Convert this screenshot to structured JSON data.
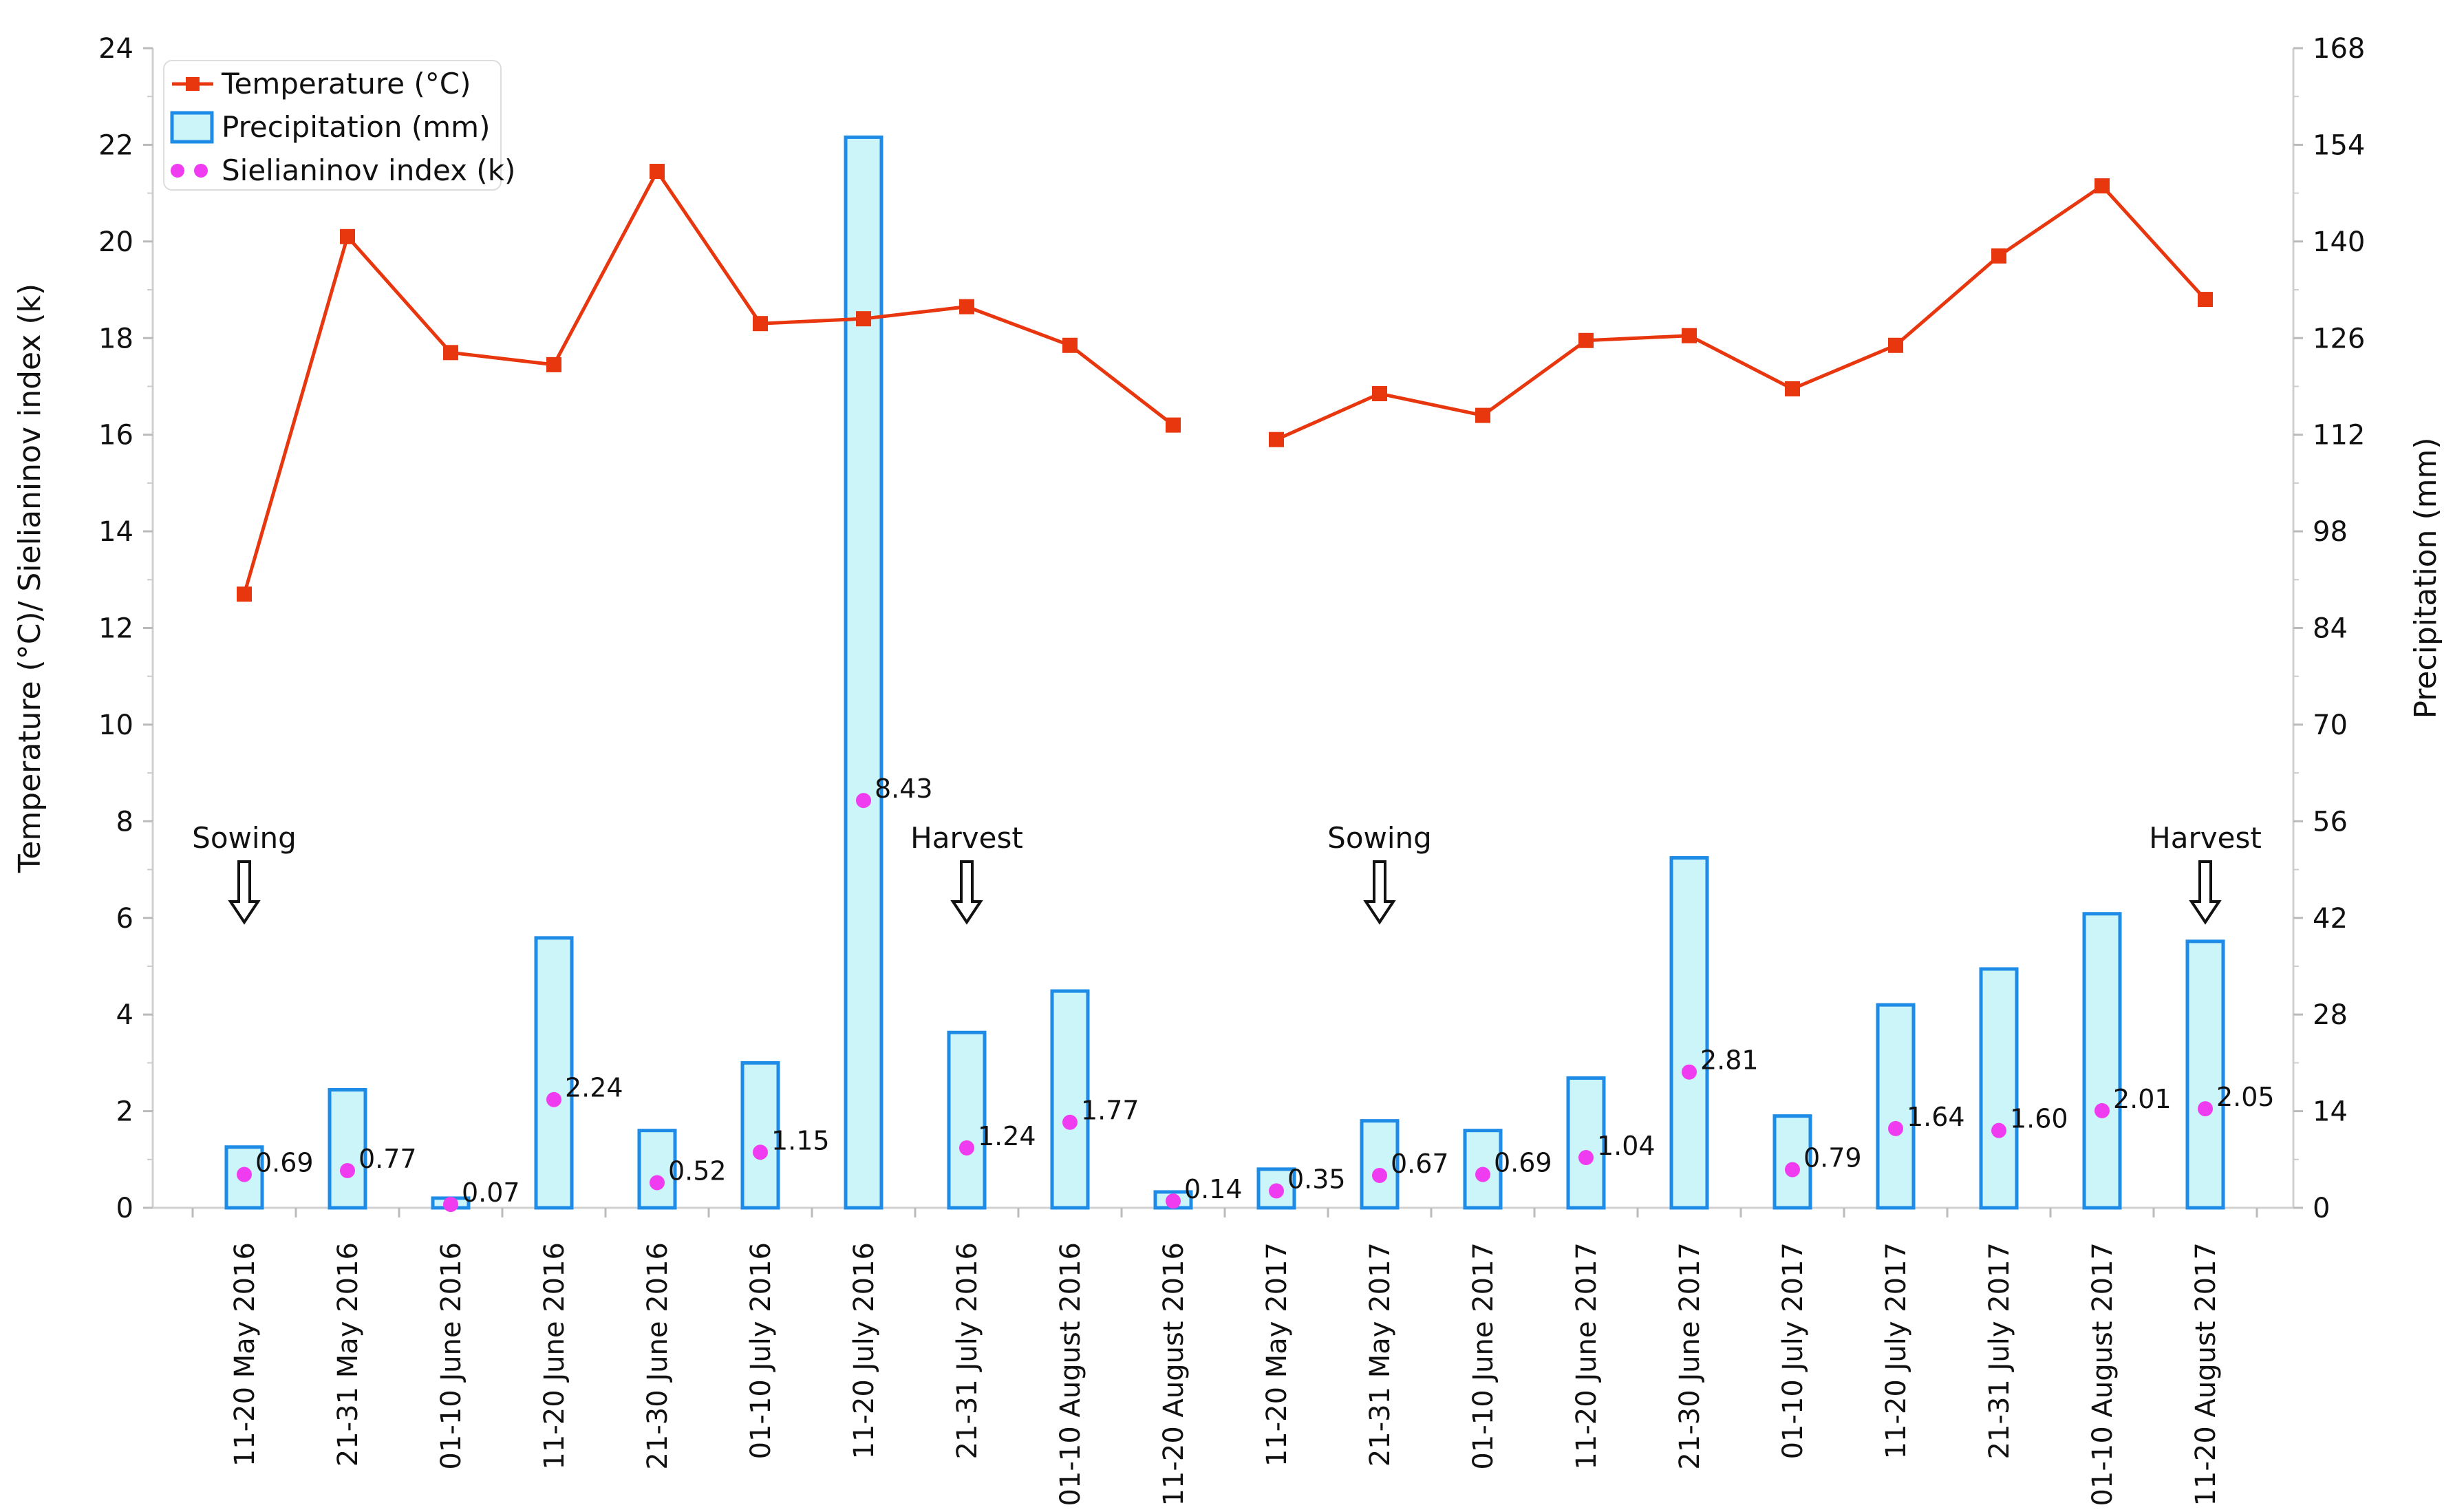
{
  "chart_data": {
    "type": "bar-line",
    "categories": [
      "11-20 May 2016",
      "21-31 May 2016",
      "01-10 June 2016",
      "11-20 June 2016",
      "21-30 June 2016",
      "01-10 July 2016",
      "11-20 July 2016",
      "21-31 July 2016",
      "01-10 August 2016",
      "11-20 August 2016",
      "11-20 May 2017",
      "21-31 May 2017",
      "01-10 June 2017",
      "11-20 June 2017",
      "21-30 June 2017",
      "01-10 July 2017",
      "11-20 July 2017",
      "21-31 July 2017",
      "01-10 August 2017",
      "11-20 August 2017"
    ],
    "series": [
      {
        "name": "Temperature (°C)",
        "kind": "line",
        "axis": "left",
        "color": "#e8360e",
        "segments": [
          [
            0,
            9
          ],
          [
            10,
            19
          ]
        ],
        "values": [
          12.7,
          20.1,
          17.7,
          17.45,
          21.45,
          18.3,
          18.4,
          18.65,
          17.85,
          16.2,
          15.9,
          16.85,
          16.4,
          17.95,
          18.05,
          16.95,
          17.85,
          19.7,
          21.15,
          18.8
        ]
      },
      {
        "name": "Precipitation (mm)",
        "kind": "bar",
        "axis": "right",
        "color": "#1e8ce6",
        "fill": "#ccf5fa",
        "values": [
          8.8,
          17.1,
          1.4,
          39.1,
          11.2,
          21.0,
          155.1,
          25.4,
          31.4,
          2.3,
          5.6,
          12.6,
          11.2,
          18.8,
          50.7,
          13.3,
          29.4,
          34.6,
          42.6,
          38.6
        ]
      },
      {
        "name": "Sielianinov index (k)",
        "kind": "scatter",
        "axis": "left",
        "color": "#f03cf0",
        "values": [
          0.69,
          0.77,
          0.07,
          2.24,
          0.52,
          1.15,
          8.43,
          1.24,
          1.77,
          0.14,
          0.35,
          0.67,
          0.69,
          1.04,
          2.81,
          0.79,
          1.64,
          1.6,
          2.01,
          2.05
        ],
        "labels": [
          "0.69",
          "0.77",
          "0.07",
          "2.24",
          "0.52",
          "1.15",
          "8.43",
          "1.24",
          "1.77",
          "0.14",
          "0.35",
          "0.67",
          "0.69",
          "1.04",
          "2.81",
          "0.79",
          "1.64",
          "1.60",
          "2.01",
          "2.05"
        ]
      }
    ],
    "y_left": {
      "label": "Temperature (°C)/ Sielianinov index (k)",
      "lim": [
        0,
        24
      ],
      "ticks": [
        0,
        2,
        4,
        6,
        8,
        10,
        12,
        14,
        16,
        18,
        20,
        22,
        24
      ]
    },
    "y_right": {
      "label": "Precipitation (mm)",
      "lim": [
        0,
        168
      ],
      "ticks": [
        0,
        14,
        28,
        42,
        56,
        70,
        84,
        98,
        112,
        126,
        140,
        154,
        168
      ]
    },
    "annotations": [
      {
        "text": "Sowing",
        "category_index": 0,
        "arrow": "down"
      },
      {
        "text": "Harvest",
        "category_index": 7,
        "arrow": "down"
      },
      {
        "text": "Sowing",
        "category_index": 11,
        "arrow": "down"
      },
      {
        "text": "Harvest",
        "category_index": 19,
        "arrow": "down"
      }
    ],
    "legend": {
      "position": "top-left",
      "entries": [
        "Temperature (°C)",
        "Precipitation (mm)",
        "Sielianinov index (k)"
      ]
    },
    "grid": false
  }
}
